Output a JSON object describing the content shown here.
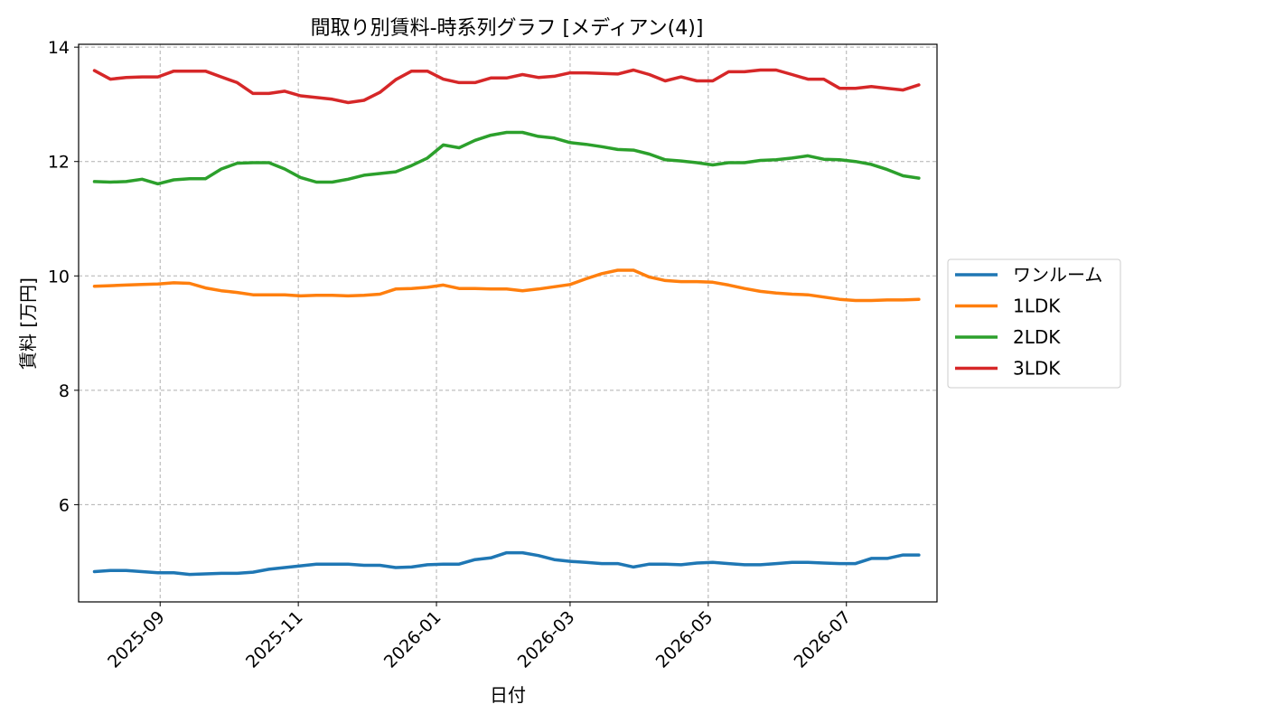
{
  "chart_data": {
    "type": "line",
    "title": "間取り別賃料-時系列グラフ [メディアン(4)]",
    "xlabel": "日付",
    "ylabel": "賃料 [万円]",
    "xlim": [
      "2025-07-27",
      "2026-08-10"
    ],
    "ylim": [
      4.3,
      14.05
    ],
    "yticks": [
      6,
      8,
      10,
      12,
      14
    ],
    "xticks": [
      "2025-09",
      "2025-11",
      "2026-01",
      "2026-03",
      "2026-05",
      "2026-07"
    ],
    "xtick_dates": [
      "2025-09-01",
      "2025-11-01",
      "2026-01-01",
      "2026-03-01",
      "2026-05-01",
      "2026-07-01"
    ],
    "grid": true,
    "legend_position": "outside-right",
    "x": [
      "2025-08-03",
      "2025-08-10",
      "2025-08-17",
      "2025-08-24",
      "2025-08-31",
      "2025-09-07",
      "2025-09-14",
      "2025-09-21",
      "2025-09-28",
      "2025-10-05",
      "2025-10-12",
      "2025-10-19",
      "2025-10-26",
      "2025-11-02",
      "2025-11-09",
      "2025-11-16",
      "2025-11-23",
      "2025-11-30",
      "2025-12-07",
      "2025-12-14",
      "2025-12-21",
      "2025-12-28",
      "2026-01-04",
      "2026-01-11",
      "2026-01-18",
      "2026-01-25",
      "2026-02-01",
      "2026-02-08",
      "2026-02-15",
      "2026-02-22",
      "2026-03-01",
      "2026-03-08",
      "2026-03-15",
      "2026-03-22",
      "2026-03-29",
      "2026-04-05",
      "2026-04-12",
      "2026-04-19",
      "2026-04-26",
      "2026-05-03",
      "2026-05-10",
      "2026-05-17",
      "2026-05-24",
      "2026-05-31",
      "2026-06-07",
      "2026-06-14",
      "2026-06-21",
      "2026-06-28",
      "2026-07-05",
      "2026-07-12",
      "2026-07-19",
      "2026-07-26",
      "2026-08-02"
    ],
    "series": [
      {
        "name": "ワンルーム",
        "color": "#1f77b4",
        "values": [
          4.83,
          4.85,
          4.85,
          4.83,
          4.81,
          4.81,
          4.78,
          4.79,
          4.8,
          4.8,
          4.82,
          4.87,
          4.9,
          4.93,
          4.96,
          4.96,
          4.96,
          4.94,
          4.94,
          4.9,
          4.91,
          4.95,
          4.96,
          4.96,
          5.04,
          5.07,
          5.16,
          5.16,
          5.11,
          5.04,
          5.01,
          4.99,
          4.97,
          4.97,
          4.91,
          4.96,
          4.96,
          4.95,
          4.98,
          4.99,
          4.97,
          4.95,
          4.95,
          4.97,
          4.99,
          4.99,
          4.98,
          4.97,
          4.97,
          5.06,
          5.06,
          5.12,
          5.12
        ]
      },
      {
        "name": "1LDK",
        "color": "#ff7f0e",
        "values": [
          9.82,
          9.83,
          9.84,
          9.85,
          9.86,
          9.88,
          9.87,
          9.79,
          9.74,
          9.71,
          9.67,
          9.67,
          9.67,
          9.65,
          9.66,
          9.66,
          9.65,
          9.66,
          9.68,
          9.77,
          9.78,
          9.8,
          9.84,
          9.78,
          9.78,
          9.77,
          9.77,
          9.74,
          9.77,
          9.81,
          9.85,
          9.95,
          10.04,
          10.1,
          10.1,
          9.98,
          9.92,
          9.9,
          9.9,
          9.89,
          9.84,
          9.78,
          9.73,
          9.7,
          9.68,
          9.67,
          9.63,
          9.59,
          9.57,
          9.57,
          9.58,
          9.58,
          9.59
        ]
      },
      {
        "name": "2LDK",
        "color": "#2ca02c",
        "values": [
          11.65,
          11.64,
          11.65,
          11.69,
          11.61,
          11.68,
          11.7,
          11.7,
          11.87,
          11.97,
          11.98,
          11.98,
          11.87,
          11.72,
          11.64,
          11.64,
          11.69,
          11.76,
          11.79,
          11.82,
          11.93,
          12.06,
          12.29,
          12.24,
          12.37,
          12.46,
          12.51,
          12.51,
          12.44,
          12.41,
          12.33,
          12.3,
          12.26,
          12.21,
          12.2,
          12.13,
          12.03,
          12.01,
          11.98,
          11.94,
          11.98,
          11.98,
          12.02,
          12.03,
          12.06,
          12.1,
          12.04,
          12.03,
          12.0,
          11.95,
          11.86,
          11.75,
          11.71
        ]
      },
      {
        "name": "3LDK",
        "color": "#d62728",
        "values": [
          13.59,
          13.44,
          13.47,
          13.48,
          13.48,
          13.58,
          13.58,
          13.58,
          13.48,
          13.38,
          13.19,
          13.19,
          13.23,
          13.15,
          13.12,
          13.09,
          13.03,
          13.07,
          13.21,
          13.43,
          13.58,
          13.58,
          13.44,
          13.38,
          13.38,
          13.46,
          13.46,
          13.52,
          13.47,
          13.49,
          13.55,
          13.55,
          13.54,
          13.53,
          13.6,
          13.52,
          13.41,
          13.48,
          13.41,
          13.41,
          13.57,
          13.57,
          13.6,
          13.6,
          13.52,
          13.44,
          13.44,
          13.28,
          13.28,
          13.31,
          13.28,
          13.25,
          13.34
        ]
      }
    ]
  }
}
